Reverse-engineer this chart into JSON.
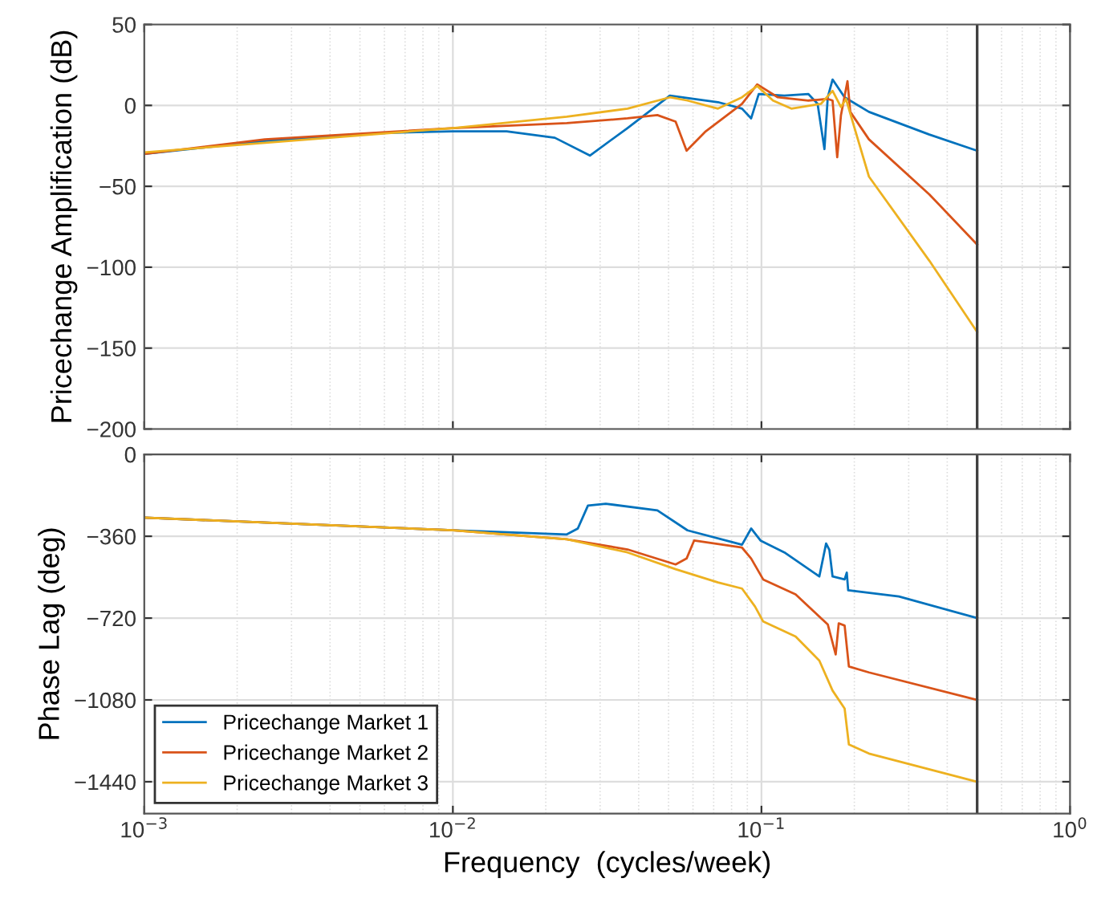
{
  "chart_data": [
    {
      "type": "line",
      "ylabel": "Pricechange Amplification (dB)",
      "log": "x",
      "xlim": [
        0.001,
        1
      ],
      "xticks": [
        0.001,
        0.01,
        0.1,
        1
      ],
      "ylim": [
        -200,
        50
      ],
      "yticks": [
        -200,
        -150,
        -100,
        -50,
        0,
        50
      ],
      "grid": true,
      "tick_labels": "y",
      "legend": false,
      "ref_lines": [
        {
          "axis": "x",
          "value": 0.5,
          "color": "#404040"
        }
      ],
      "series": [
        {
          "color": "#0072bd",
          "x": [
            0.001,
            0.00246,
            0.00607,
            0.01,
            0.01493,
            0.0214,
            0.0278,
            0.0368,
            0.0505,
            0.0723,
            0.0865,
            0.0926,
            0.098,
            0.1186,
            0.142,
            0.152,
            0.16,
            0.164,
            0.17,
            0.186,
            0.223,
            0.35,
            0.5
          ],
          "values": [
            -30,
            -22,
            -17,
            -16,
            -16,
            -20,
            -31,
            -14,
            6,
            2,
            -2,
            -8,
            7,
            6,
            7,
            1,
            -27,
            5,
            16,
            5,
            -4,
            -18,
            -28
          ]
        },
        {
          "color": "#d95319",
          "x": [
            0.001,
            0.00246,
            0.01,
            0.0234,
            0.0368,
            0.046,
            0.0527,
            0.0572,
            0.066,
            0.0865,
            0.0969,
            0.113,
            0.142,
            0.164,
            0.17,
            0.176,
            0.181,
            0.19,
            0.194,
            0.223,
            0.35,
            0.5
          ],
          "values": [
            -30,
            -21,
            -14,
            -11,
            -8,
            -6,
            -10,
            -28,
            -16,
            1,
            13,
            5,
            3,
            4,
            3,
            -32,
            -6,
            15,
            -4,
            -21,
            -55,
            -86
          ]
        },
        {
          "color": "#edb120",
          "x": [
            0.001,
            0.01,
            0.0234,
            0.0368,
            0.0505,
            0.0576,
            0.0723,
            0.0865,
            0.0969,
            0.109,
            0.125,
            0.156,
            0.17,
            0.181,
            0.188,
            0.196,
            0.223,
            0.35,
            0.5
          ],
          "values": [
            -29,
            -14,
            -7,
            -2,
            5,
            3,
            -2,
            5,
            12,
            3,
            -2,
            1,
            9,
            -1,
            4,
            -8,
            -44,
            -96,
            -140
          ]
        }
      ]
    },
    {
      "type": "line",
      "xlabel": "Frequency  (cycles/week)",
      "ylabel": "Phase Lag (deg)",
      "log": "x",
      "xlim": [
        0.001,
        1
      ],
      "xticks": [
        {
          "value": 0.001,
          "label": "10$^{−3}$"
        },
        {
          "value": 0.01,
          "label": "10$^{−2}$"
        },
        {
          "value": 0.1,
          "label": "10$^{−1}$"
        },
        {
          "value": 1,
          "label": "10$^{0}$"
        }
      ],
      "ylim": [
        -1580,
        0
      ],
      "yticks": [
        -1440,
        -1080,
        -720,
        -360,
        0
      ],
      "grid": true,
      "legend": "bottom left",
      "ref_lines": [
        {
          "axis": "x",
          "value": 0.5,
          "color": "#404040"
        }
      ],
      "series": [
        {
          "name": "Pricechange Market 1",
          "color": "#0072bd",
          "x": [
            0.001,
            0.01,
            0.0234,
            0.0254,
            0.0274,
            0.0313,
            0.046,
            0.0576,
            0.0865,
            0.0926,
            0.0993,
            0.1186,
            0.154,
            0.162,
            0.166,
            0.17,
            0.186,
            0.189,
            0.191,
            0.279,
            0.5
          ],
          "values": [
            -278,
            -334,
            -352,
            -326,
            -225,
            -217,
            -246,
            -334,
            -397,
            -326,
            -379,
            -431,
            -537,
            -392,
            -420,
            -537,
            -550,
            -520,
            -598,
            -625,
            -720
          ]
        },
        {
          "name": "Pricechange Market 2",
          "color": "#d95319",
          "x": [
            0.001,
            0.01,
            0.0234,
            0.0368,
            0.0527,
            0.0572,
            0.0605,
            0.0865,
            0.0926,
            0.1013,
            0.129,
            0.164,
            0.174,
            0.178,
            0.186,
            0.192,
            0.223,
            0.5
          ],
          "values": [
            -278,
            -334,
            -373,
            -418,
            -484,
            -458,
            -379,
            -410,
            -458,
            -550,
            -616,
            -748,
            -880,
            -743,
            -753,
            -933,
            -959,
            -1080
          ]
        },
        {
          "name": "Pricechange Market 3",
          "color": "#edb120",
          "x": [
            0.001,
            0.01,
            0.0234,
            0.0368,
            0.0527,
            0.0723,
            0.0865,
            0.0953,
            0.1013,
            0.129,
            0.154,
            0.17,
            0.186,
            0.192,
            0.223,
            0.5
          ],
          "values": [
            -278,
            -334,
            -373,
            -431,
            -505,
            -563,
            -590,
            -669,
            -735,
            -801,
            -907,
            -1039,
            -1118,
            -1276,
            -1316,
            -1440
          ]
        }
      ]
    }
  ]
}
